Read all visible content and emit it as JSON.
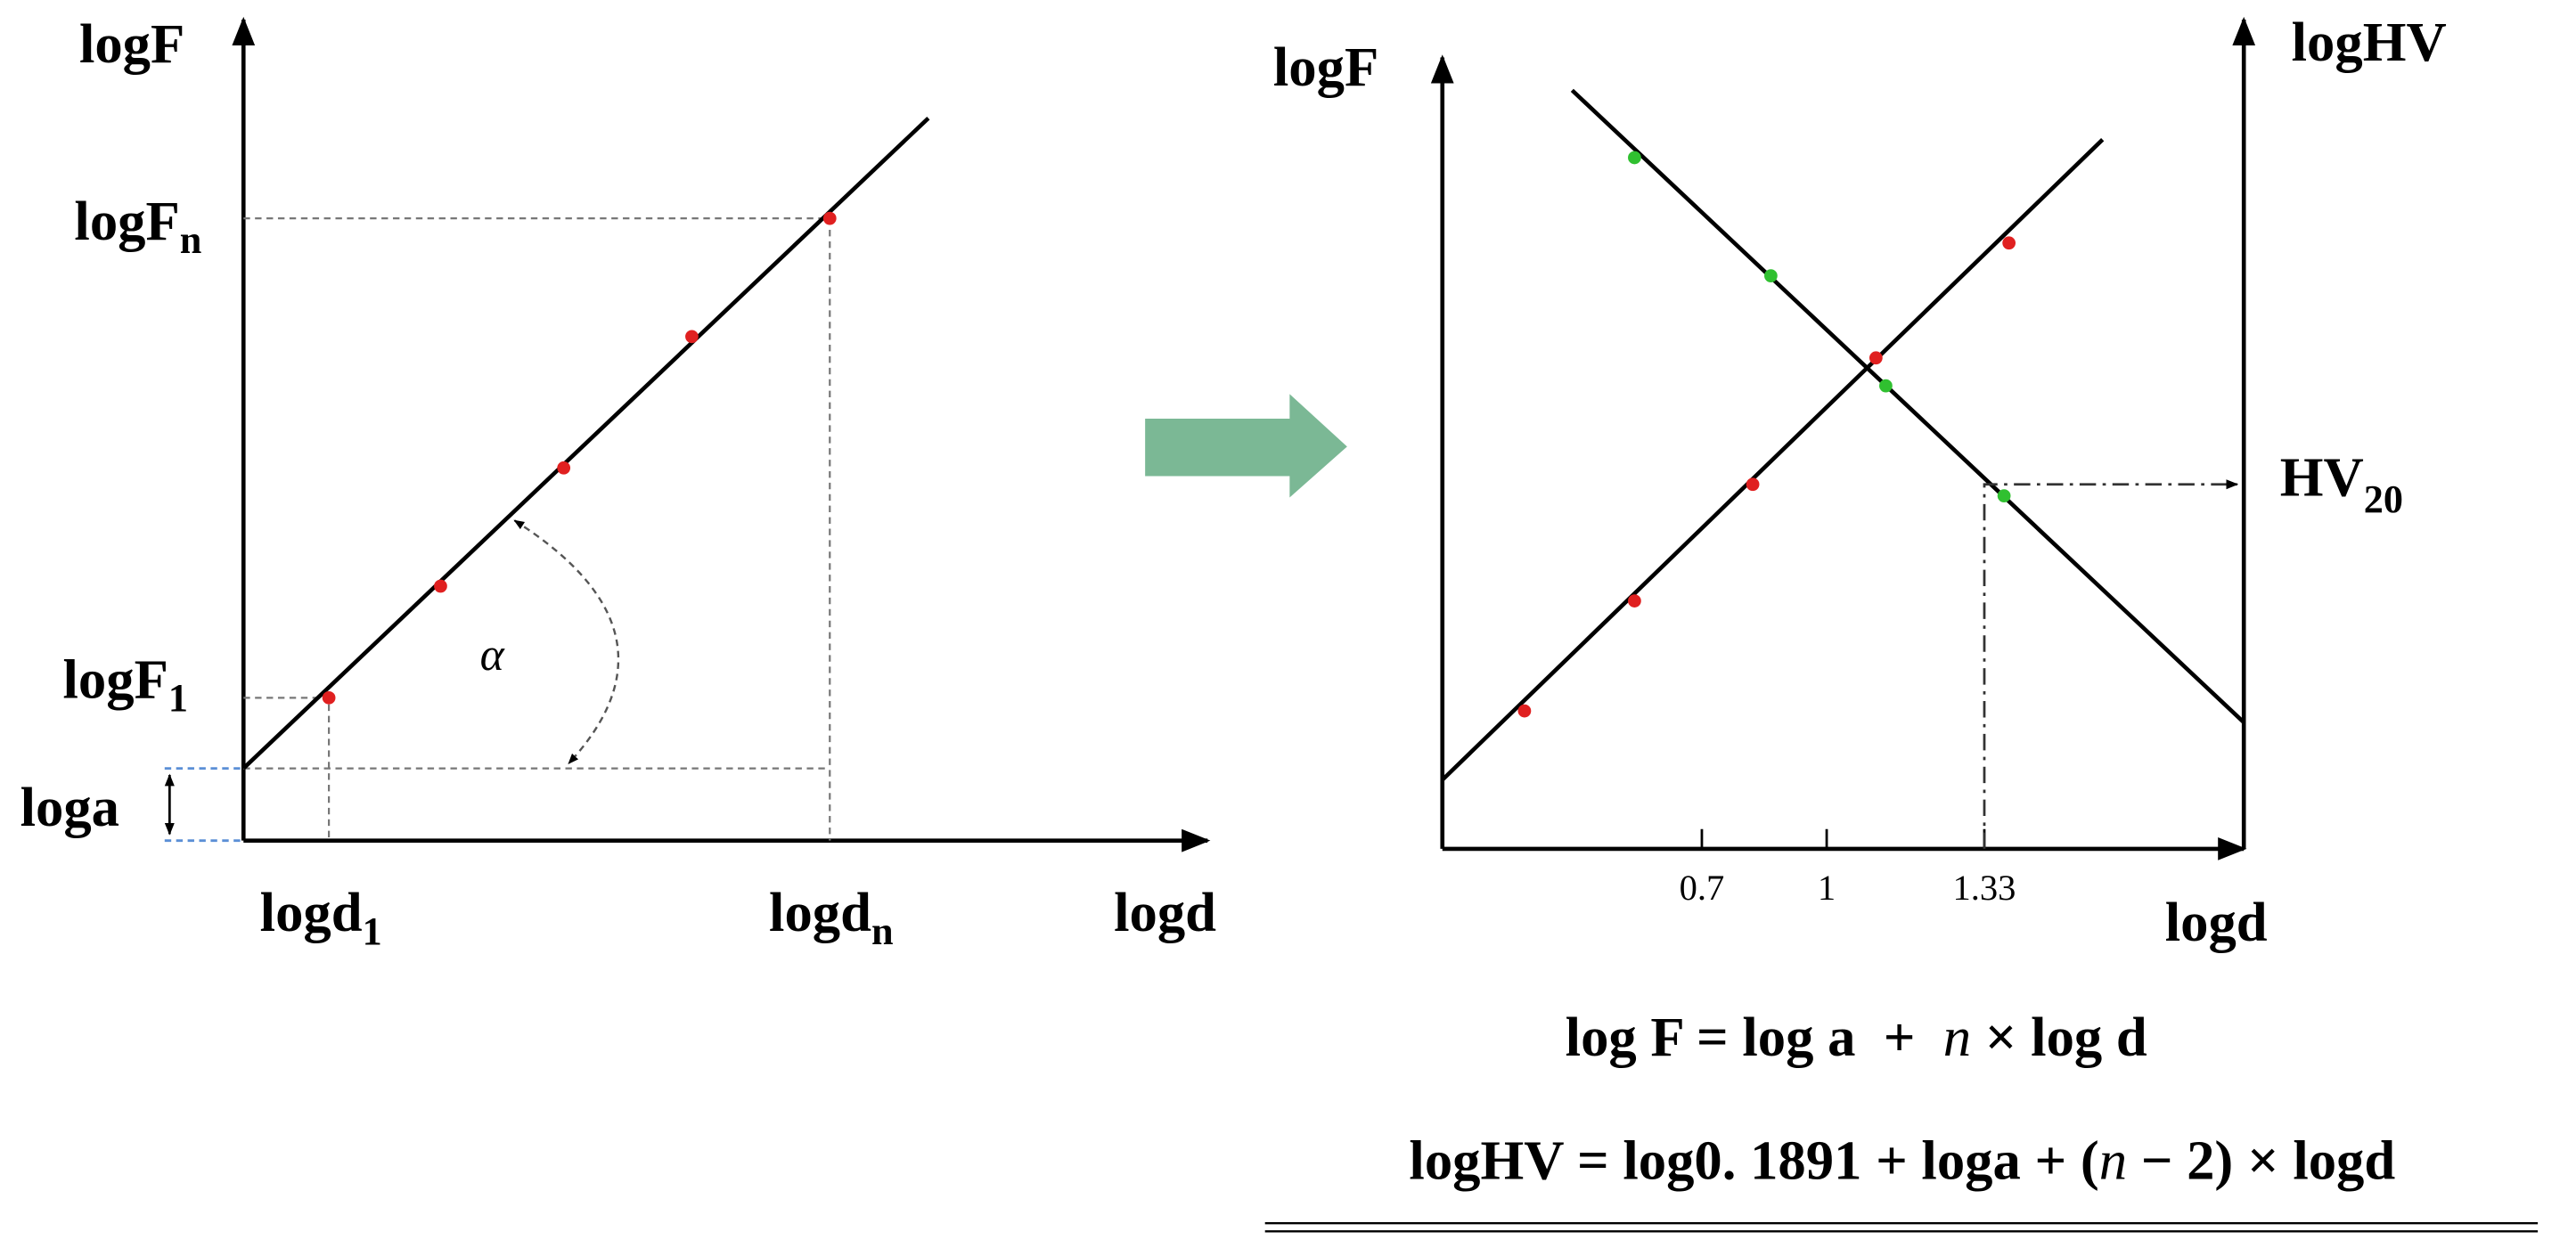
{
  "left": {
    "y_axis": {
      "base": "logF"
    },
    "logFn": {
      "base": "logF",
      "sub": "n"
    },
    "logF1": {
      "base": "logF",
      "sub": "1"
    },
    "loga": "loga",
    "logd1": {
      "base": "logd",
      "sub": "1"
    },
    "logdn": {
      "base": "logd",
      "sub": "n"
    },
    "x_axis": "logd",
    "angle": "α"
  },
  "right": {
    "y_axis": "logF",
    "y2_axis": "logHV",
    "hv20": {
      "base": "HV",
      "sub": "20"
    },
    "ticks": [
      "0.7",
      "1",
      "1.33"
    ],
    "x_axis": "logd"
  },
  "formulas": [
    [
      "log F = log a  +  ",
      "n",
      " × log d"
    ],
    [
      "logHV = log0. 1891 + loga + (",
      "n",
      " − 2) × logd"
    ]
  ]
}
